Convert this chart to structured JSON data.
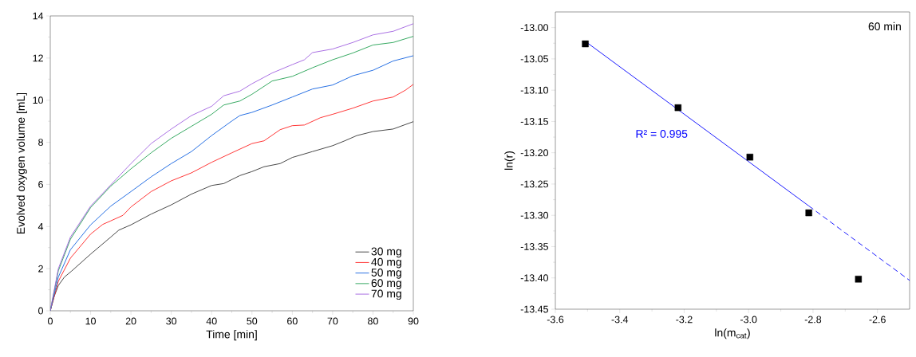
{
  "chart_data": [
    {
      "type": "line",
      "xlabel": "Time [min]",
      "ylabel": "Evolved oxygen volume [mL]",
      "xlim": [
        0,
        90
      ],
      "ylim": [
        0,
        14
      ],
      "xticks": [
        0,
        10,
        20,
        30,
        40,
        50,
        60,
        70,
        80,
        90
      ],
      "yticks": [
        0,
        2,
        4,
        6,
        8,
        10,
        12,
        14
      ],
      "legend": "bottom right",
      "grid": false,
      "marker": "none",
      "line_style": "solid",
      "series": [
        {
          "name": "30 mg",
          "color": "#333333",
          "x": [
            0,
            1,
            2,
            3.5,
            5.2,
            10,
            15,
            17,
            20,
            25,
            30,
            35,
            40,
            43,
            47,
            50,
            53,
            57,
            60,
            65,
            70,
            73,
            76,
            80,
            85,
            90
          ],
          "values": [
            0,
            0.7,
            1.2,
            1.6,
            1.87,
            2.69,
            3.5,
            3.83,
            4.08,
            4.59,
            5.03,
            5.54,
            5.95,
            6.04,
            6.42,
            6.61,
            6.84,
            6.99,
            7.28,
            7.56,
            7.84,
            8.07,
            8.32,
            8.51,
            8.63,
            8.98
          ]
        },
        {
          "name": "40 mg",
          "color": "#ff2020",
          "x": [
            0,
            2,
            5,
            10,
            13,
            15,
            18,
            20,
            25,
            30,
            35,
            40,
            45,
            50,
            53,
            57,
            60,
            63,
            67,
            70,
            75,
            80,
            85,
            88,
            90
          ],
          "values": [
            0,
            1.4,
            2.5,
            3.64,
            4.1,
            4.27,
            4.53,
            4.93,
            5.66,
            6.17,
            6.55,
            7.05,
            7.5,
            7.94,
            8.07,
            8.6,
            8.79,
            8.82,
            9.17,
            9.33,
            9.62,
            9.96,
            10.15,
            10.47,
            10.75
          ]
        },
        {
          "name": "50 mg",
          "color": "#1060e0",
          "x": [
            0,
            2,
            5,
            10,
            15,
            20,
            25,
            30,
            35,
            40,
            45,
            47,
            50,
            55,
            60,
            65,
            70,
            75,
            80,
            85,
            90
          ],
          "values": [
            0,
            1.6,
            2.9,
            4.08,
            4.97,
            5.66,
            6.36,
            6.99,
            7.56,
            8.32,
            9.01,
            9.27,
            9.42,
            9.77,
            10.15,
            10.53,
            10.72,
            11.16,
            11.42,
            11.86,
            12.11
          ]
        },
        {
          "name": "60 mg",
          "color": "#20a050",
          "x": [
            0,
            2,
            5,
            10,
            15,
            20,
            25,
            30,
            35,
            40,
            43,
            47,
            50,
            55,
            60,
            65,
            70,
            75,
            80,
            85,
            90
          ],
          "values": [
            0,
            1.9,
            3.4,
            4.9,
            5.92,
            6.74,
            7.5,
            8.19,
            8.76,
            9.33,
            9.77,
            9.96,
            10.28,
            10.91,
            11.13,
            11.54,
            11.92,
            12.24,
            12.62,
            12.74,
            13.03
          ]
        },
        {
          "name": "70 mg",
          "color": "#a060e0",
          "x": [
            0,
            2,
            5,
            10,
            15,
            20,
            25,
            30,
            35,
            40,
            43,
            47,
            50,
            55,
            60,
            63,
            65,
            70,
            75,
            80,
            85,
            90
          ],
          "values": [
            0,
            2.0,
            3.5,
            4.97,
            5.98,
            6.99,
            7.94,
            8.63,
            9.27,
            9.71,
            10.21,
            10.43,
            10.78,
            11.29,
            11.69,
            11.92,
            12.26,
            12.43,
            12.74,
            13.1,
            13.27,
            13.63
          ]
        }
      ]
    },
    {
      "type": "scatter",
      "xlabel": "ln(m$_{cat}$)",
      "ylabel": "ln(r)",
      "xlim": [
        -3.6,
        -2.5
      ],
      "ylim": [
        -13.45,
        -12.975
      ],
      "xticks": [
        {
          "value": -3.6,
          "label": "-3.6"
        },
        {
          "value": -3.4,
          "label": "-3.4"
        },
        {
          "value": -3.2,
          "label": "-3.2"
        },
        {
          "value": -3.0,
          "label": "-3.0"
        },
        {
          "value": -2.8,
          "label": "-2.8"
        },
        {
          "value": -2.6,
          "label": "-2.6"
        }
      ],
      "yticks": [
        {
          "value": -13.45,
          "label": "-13.45"
        },
        {
          "value": -13.4,
          "label": "-13.40"
        },
        {
          "value": -13.35,
          "label": "-13.35"
        },
        {
          "value": -13.3,
          "label": "-13.30"
        },
        {
          "value": -13.25,
          "label": "-13.25"
        },
        {
          "value": -13.2,
          "label": "-13.20"
        },
        {
          "value": -13.15,
          "label": "-13.15"
        },
        {
          "value": -13.1,
          "label": "-13.10"
        },
        {
          "value": -13.05,
          "label": "-13.05"
        },
        {
          "value": -13.0,
          "label": "-13.00"
        }
      ],
      "grid": false,
      "annotations": [
        "R² = 0.995",
        "60 min"
      ],
      "series": [
        {
          "type": "scatter",
          "color": "#000000",
          "marker": "square",
          "x": [
            -3.507,
            -3.219,
            -2.996,
            -2.813,
            -2.659
          ],
          "values": [
            -13.026,
            -13.128,
            -13.207,
            -13.296,
            -13.402
          ]
        },
        {
          "type": "line",
          "color": "#0000ff",
          "marker": "none",
          "line_style": "solid",
          "x": [
            -3.507,
            -2.813
          ],
          "values": [
            -13.022,
            -13.285
          ]
        },
        {
          "type": "line",
          "color": "#0000ff",
          "marker": "none",
          "line_style": "dashed",
          "x": [
            -2.813,
            -2.5
          ],
          "values": [
            -13.285,
            -13.404
          ]
        }
      ]
    }
  ]
}
